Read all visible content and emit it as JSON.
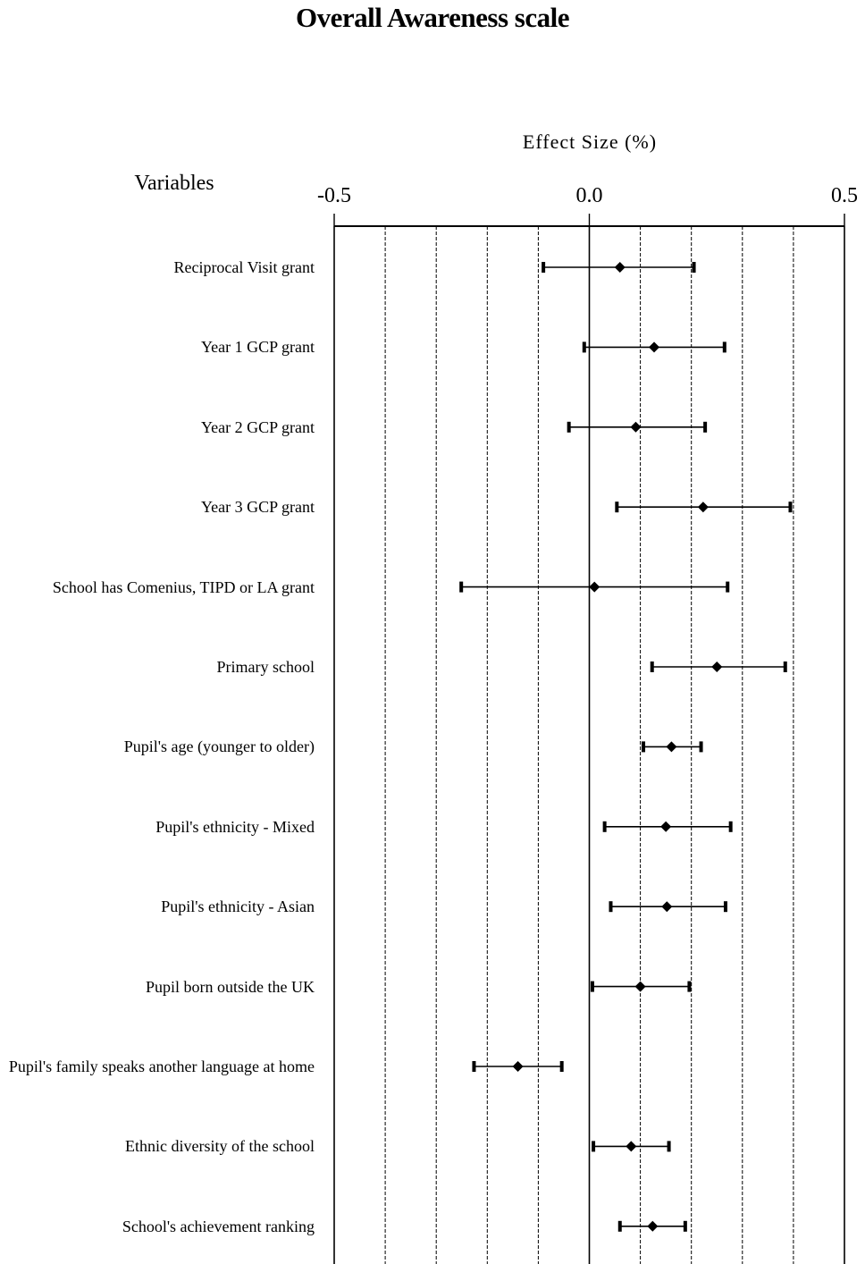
{
  "title": "Overall Awareness scale",
  "variables_heading": "Variables",
  "chart_data": {
    "type": "forest",
    "title": "Overall Awareness scale",
    "xlabel": "Effect Size (%)",
    "ylabel": "Variables",
    "xlim": [
      -0.5,
      0.5
    ],
    "xticks": [
      "-0.5",
      "0.0",
      "0.5"
    ],
    "grid": "vertical dashed every 0.1",
    "rows": [
      {
        "label": "Reciprocal Visit grant",
        "estimate": 0.06,
        "low": -0.09,
        "high": 0.205
      },
      {
        "label": "Year 1 GCP grant",
        "estimate": 0.127,
        "low": -0.01,
        "high": 0.265
      },
      {
        "label": "Year 2 GCP grant",
        "estimate": 0.091,
        "low": -0.04,
        "high": 0.227
      },
      {
        "label": "Year 3 GCP grant",
        "estimate": 0.223,
        "low": 0.054,
        "high": 0.394
      },
      {
        "label": "School has Comenius, TIPD or LA grant",
        "estimate": 0.01,
        "low": -0.251,
        "high": 0.271
      },
      {
        "label": "Primary school",
        "estimate": 0.25,
        "low": 0.123,
        "high": 0.384
      },
      {
        "label": "Pupil's age (younger to older)",
        "estimate": 0.161,
        "low": 0.106,
        "high": 0.219
      },
      {
        "label": "Pupil's ethnicity  - Mixed",
        "estimate": 0.15,
        "low": 0.03,
        "high": 0.277
      },
      {
        "label": "Pupil's ethnicity  - Asian",
        "estimate": 0.152,
        "low": 0.042,
        "high": 0.267
      },
      {
        "label": "Pupil born outside the UK",
        "estimate": 0.1,
        "low": 0.006,
        "high": 0.196
      },
      {
        "label": "Pupil's family speaks another language at home",
        "estimate": -0.14,
        "low": -0.226,
        "high": -0.054
      },
      {
        "label": "Ethnic diversity of the school",
        "estimate": 0.082,
        "low": 0.008,
        "high": 0.156
      },
      {
        "label": "School's achievement  ranking",
        "estimate": 0.124,
        "low": 0.06,
        "high": 0.188
      }
    ]
  }
}
